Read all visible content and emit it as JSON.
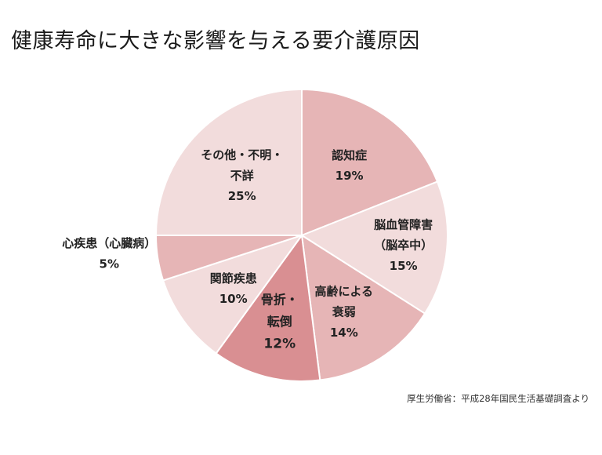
{
  "title": "健康寿命に大きな影響を与える要介護原因",
  "source": "厚生労働省：平成28年国民生活基礎調査より",
  "chart_data": {
    "type": "pie",
    "title": "健康寿命に大きな影響を与える要介護原因",
    "slices": [
      {
        "label_lines": [
          "認知症"
        ],
        "value": 19,
        "value_label": "19%",
        "color": "#e6b5b6"
      },
      {
        "label_lines": [
          "脳血管障害",
          "（脳卒中）"
        ],
        "value": 15,
        "value_label": "15%",
        "color": "#f2dcdc"
      },
      {
        "label_lines": [
          "高齢による",
          "衰弱"
        ],
        "value": 14,
        "value_label": "14%",
        "color": "#e6b5b6"
      },
      {
        "label_lines": [
          "骨折・",
          "転倒"
        ],
        "value": 12,
        "value_label": "12%",
        "color": "#d98f92"
      },
      {
        "label_lines": [
          "関節疾患"
        ],
        "value": 10,
        "value_label": "10%",
        "color": "#f2dcdc"
      },
      {
        "label_lines": [
          "心疾患（心臓病）"
        ],
        "value": 5,
        "value_label": "5%",
        "color": "#e6b5b6"
      },
      {
        "label_lines": [
          "その他・不明・",
          "不詳"
        ],
        "value": 25,
        "value_label": "25%",
        "color": "#f2dcdc"
      }
    ]
  }
}
